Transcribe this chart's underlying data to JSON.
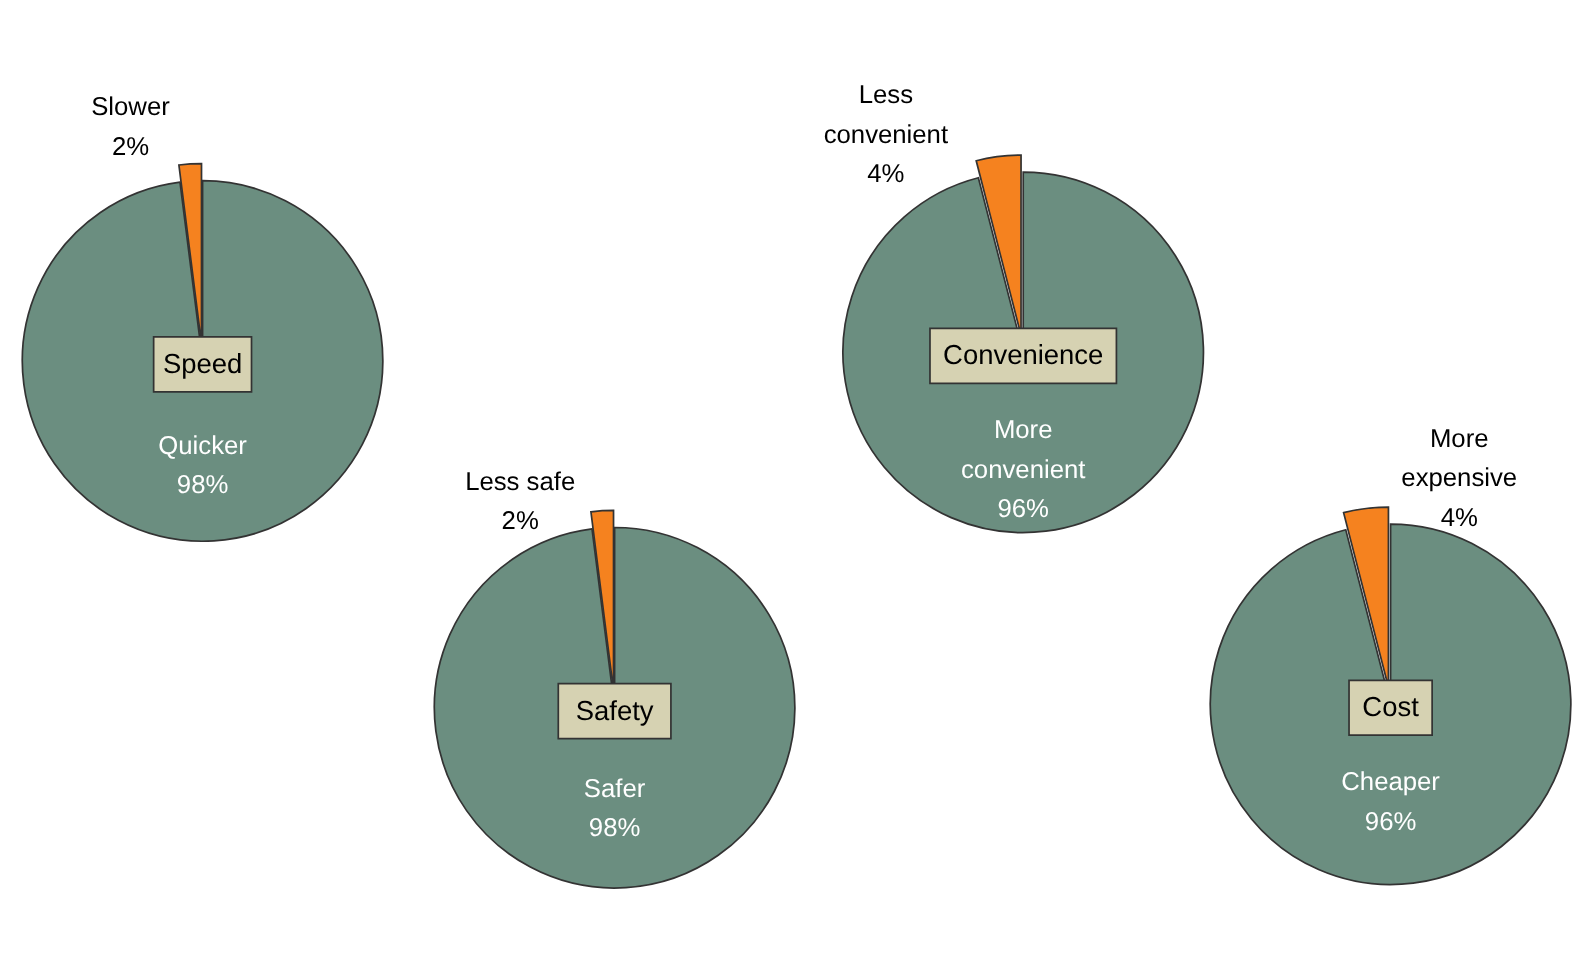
{
  "chart_data": [
    {
      "type": "pie",
      "title": "Speed",
      "categories": [
        "Quicker",
        "Slower"
      ],
      "values": [
        98,
        2
      ],
      "colors": [
        "#6b8e80",
        "#f5821f"
      ],
      "value_labels": [
        "98%",
        "2%"
      ]
    },
    {
      "type": "pie",
      "title": "Safety",
      "categories": [
        "Safer",
        "Less safe"
      ],
      "values": [
        98,
        2
      ],
      "colors": [
        "#6b8e80",
        "#f5821f"
      ],
      "value_labels": [
        "98%",
        "2%"
      ]
    },
    {
      "type": "pie",
      "title": "Convenience",
      "categories": [
        "More convenient",
        "Less convenient"
      ],
      "values": [
        96,
        4
      ],
      "colors": [
        "#6b8e80",
        "#f5821f"
      ],
      "value_labels": [
        "96%",
        "4%"
      ]
    },
    {
      "type": "pie",
      "title": "Cost",
      "categories": [
        "Cheaper",
        "More expensive"
      ],
      "values": [
        96,
        4
      ],
      "colors": [
        "#6b8e80",
        "#f5821f"
      ],
      "value_labels": [
        "96%",
        "4%"
      ]
    }
  ]
}
